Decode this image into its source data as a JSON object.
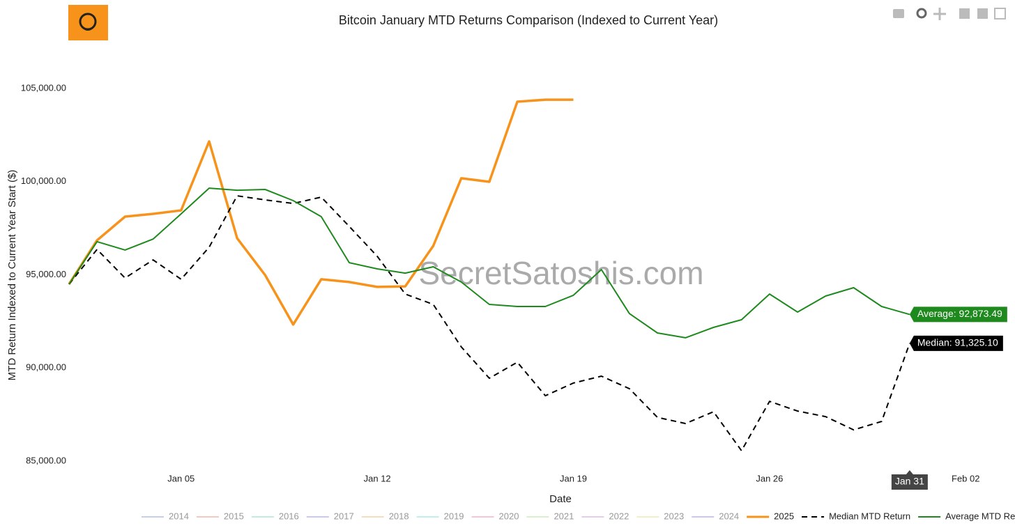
{
  "chart_data": {
    "type": "line",
    "title": "Bitcoin January MTD Returns Comparison (Indexed to Current Year)",
    "watermark": "SecretSatoshis.com",
    "x_label": "Date",
    "y_label": "MTD Return Indexed to Current Year Start ($)",
    "x": [
      "Jan 01",
      "Jan 02",
      "Jan 03",
      "Jan 04",
      "Jan 05",
      "Jan 06",
      "Jan 07",
      "Jan 08",
      "Jan 09",
      "Jan 10",
      "Jan 11",
      "Jan 12",
      "Jan 13",
      "Jan 14",
      "Jan 15",
      "Jan 16",
      "Jan 17",
      "Jan 18",
      "Jan 19",
      "Jan 20",
      "Jan 21",
      "Jan 22",
      "Jan 23",
      "Jan 24",
      "Jan 25",
      "Jan 26",
      "Jan 27",
      "Jan 28",
      "Jan 29",
      "Jan 30",
      "Jan 31"
    ],
    "xlim": [
      0.975,
      34.76
    ],
    "xticks": [
      {
        "value": 5,
        "label": "Jan 05"
      },
      {
        "value": 12,
        "label": "Jan 12"
      },
      {
        "value": 19,
        "label": "Jan 19"
      },
      {
        "value": 26,
        "label": "Jan 26"
      },
      {
        "value": 33,
        "label": "Feb 02"
      }
    ],
    "ylim": [
      84500,
      107000
    ],
    "yticks": [
      {
        "value": 85000,
        "label": "85,000.00"
      },
      {
        "value": 90000,
        "label": "90,000.00"
      },
      {
        "value": 95000,
        "label": "95,000.00"
      },
      {
        "value": 100000,
        "label": "100,000.00"
      },
      {
        "value": 105000,
        "label": "105,000.00"
      }
    ],
    "grid": false,
    "hover_index": 30,
    "legend_hidden": [
      {
        "name": "2014",
        "color": "#c6d0ec"
      },
      {
        "name": "2015",
        "color": "#f5c9bf"
      },
      {
        "name": "2016",
        "color": "#bfeee0"
      },
      {
        "name": "2017",
        "color": "#c9c9f5"
      },
      {
        "name": "2018",
        "color": "#f8dcc0"
      },
      {
        "name": "2019",
        "color": "#c0f0ec"
      },
      {
        "name": "2020",
        "color": "#f8c6d2"
      },
      {
        "name": "2021",
        "color": "#daf0cc"
      },
      {
        "name": "2022",
        "color": "#e6cdf0"
      },
      {
        "name": "2023",
        "color": "#f0f0c8"
      },
      {
        "name": "2024",
        "color": "#c8c8f0"
      }
    ],
    "series": [
      {
        "name": "2025",
        "color": "#f7931a",
        "dash": false,
        "width": 3.5,
        "values": [
          94495,
          96850,
          98120,
          98270,
          98460,
          102160,
          96960,
          94980,
          92330,
          94760,
          94610,
          94350,
          94380,
          96550,
          100180,
          99990,
          104290,
          104400,
          104400,
          null,
          null,
          null,
          null,
          null,
          null,
          null,
          null,
          null,
          null,
          null,
          null
        ]
      },
      {
        "name": "Median MTD Return",
        "color": "#000000",
        "dash": true,
        "width": 2,
        "values": [
          94495,
          96360,
          94830,
          95800,
          94760,
          96480,
          99240,
          99020,
          98830,
          99170,
          97600,
          95990,
          93970,
          93410,
          91130,
          89450,
          90310,
          88510,
          89190,
          89560,
          88890,
          87350,
          87020,
          87650,
          85560,
          88210,
          87690,
          87390,
          86680,
          87130,
          91325.1
        ],
        "end_label": "Median: 91,325.10"
      },
      {
        "name": "Average MTD Return",
        "color": "#1e8a1e",
        "dash": false,
        "width": 2,
        "values": [
          94495,
          96780,
          96330,
          96920,
          98270,
          99650,
          99540,
          99580,
          98980,
          98120,
          95650,
          95320,
          95090,
          95430,
          94610,
          93410,
          93300,
          93300,
          93900,
          95280,
          92920,
          91880,
          91620,
          92180,
          92590,
          93970,
          93000,
          93860,
          94310,
          93300,
          92873.49
        ],
        "end_label": "Average: 92,873.49"
      }
    ]
  }
}
